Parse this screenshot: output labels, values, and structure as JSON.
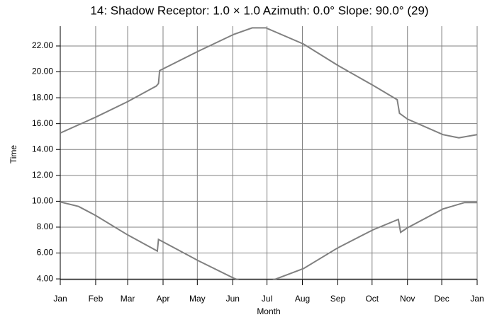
{
  "chart_data": {
    "type": "line",
    "title": "14: Shadow  Receptor: 1.0 × 1.0  Azimuth: 0.0°  Slope: 90.0° (29)",
    "x_label": "Month",
    "y_label": "Time",
    "xlim": [
      0,
      365
    ],
    "xticks": [
      {
        "value": 0,
        "label": "Jan"
      },
      {
        "value": 31,
        "label": "Feb"
      },
      {
        "value": 59,
        "label": "Mar"
      },
      {
        "value": 90,
        "label": "Apr"
      },
      {
        "value": 120,
        "label": "May"
      },
      {
        "value": 151,
        "label": "Jun"
      },
      {
        "value": 181,
        "label": "Jul"
      },
      {
        "value": 212,
        "label": "Aug"
      },
      {
        "value": 243,
        "label": "Sep"
      },
      {
        "value": 273,
        "label": "Oct"
      },
      {
        "value": 304,
        "label": "Nov"
      },
      {
        "value": 334,
        "label": "Dec"
      },
      {
        "value": 365,
        "label": "Jan"
      }
    ],
    "ylim": [
      3.95,
      23.53
    ],
    "yticks": [
      {
        "value": 4,
        "label": "4.00"
      },
      {
        "value": 6,
        "label": "6.00"
      },
      {
        "value": 8,
        "label": "8.00"
      },
      {
        "value": 10,
        "label": "10.00"
      },
      {
        "value": 12,
        "label": "12.00"
      },
      {
        "value": 14,
        "label": "14.00"
      },
      {
        "value": 16,
        "label": "16.00"
      },
      {
        "value": 18,
        "label": "18.00"
      },
      {
        "value": 20,
        "label": "20.00"
      },
      {
        "value": 22,
        "label": "22.00"
      }
    ],
    "grid": true,
    "series": [
      {
        "color": "#808080",
        "x": [
          0,
          31,
          59,
          84,
          86,
          87,
          121,
          152,
          168,
          180,
          213,
          243,
          274,
          295,
          297,
          304,
          335,
          349,
          365
        ],
        "values": [
          15.27,
          16.5,
          17.7,
          18.9,
          19.1,
          20.1,
          21.6,
          22.9,
          23.4,
          23.4,
          22.15,
          20.5,
          18.95,
          17.85,
          16.8,
          16.35,
          15.15,
          14.9,
          15.15
        ]
      },
      {
        "color": "#808080",
        "x": [
          0,
          16,
          31,
          59,
          85,
          86,
          121,
          152,
          165,
          177,
          213,
          243,
          274,
          296,
          298,
          304,
          335,
          354,
          365
        ],
        "values": [
          9.95,
          9.6,
          8.9,
          7.4,
          6.15,
          7.05,
          5.4,
          4.05,
          3.6,
          3.6,
          4.8,
          6.4,
          7.8,
          8.6,
          7.6,
          7.95,
          9.4,
          9.9,
          9.9
        ]
      }
    ]
  }
}
